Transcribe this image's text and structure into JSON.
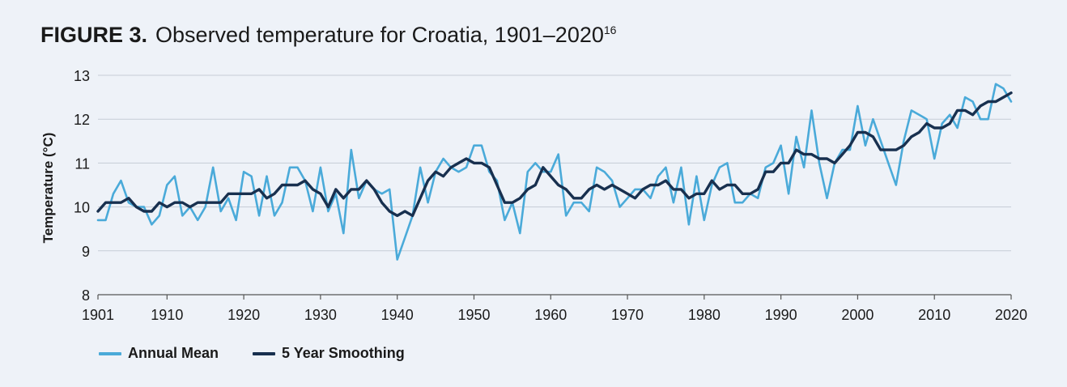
{
  "figure": {
    "label": "FIGURE 3.",
    "title": "Observed temperature for Croatia, 1901–2020",
    "footnote": "16"
  },
  "chart_data": {
    "type": "line",
    "xlabel": "",
    "ylabel": "Temperature (°C)",
    "xlim": [
      1901,
      2020
    ],
    "ylim": [
      8,
      13
    ],
    "xticks": [
      1901,
      1910,
      1920,
      1930,
      1940,
      1950,
      1960,
      1970,
      1980,
      1990,
      2000,
      2010,
      2020
    ],
    "yticks": [
      8,
      9,
      10,
      11,
      12,
      13
    ],
    "grid": "horizontal",
    "legend_position": "bottom-left",
    "series": [
      {
        "name": "Annual Mean",
        "color": "#4aaad9",
        "x_start": 1901,
        "values": [
          9.7,
          9.7,
          10.3,
          10.6,
          10.1,
          10.0,
          10.0,
          9.6,
          9.8,
          10.5,
          10.7,
          9.8,
          10.0,
          9.7,
          10.0,
          10.9,
          9.9,
          10.2,
          9.7,
          10.8,
          10.7,
          9.8,
          10.7,
          9.8,
          10.1,
          10.9,
          10.9,
          10.6,
          9.9,
          10.9,
          9.9,
          10.3,
          9.4,
          11.3,
          10.2,
          10.6,
          10.4,
          10.3,
          10.4,
          8.8,
          9.3,
          9.8,
          10.9,
          10.1,
          10.8,
          11.1,
          10.9,
          10.8,
          10.9,
          11.4,
          11.4,
          10.8,
          10.6,
          9.7,
          10.1,
          9.4,
          10.8,
          11.0,
          10.8,
          10.8,
          11.2,
          9.8,
          10.1,
          10.1,
          9.9,
          10.9,
          10.8,
          10.6,
          10.0,
          10.2,
          10.4,
          10.4,
          10.2,
          10.7,
          10.9,
          10.1,
          10.9,
          9.6,
          10.7,
          9.7,
          10.5,
          10.9,
          11.0,
          10.1,
          10.1,
          10.3,
          10.2,
          10.9,
          11.0,
          11.4,
          10.3,
          11.6,
          10.9,
          12.2,
          11.0,
          10.2,
          11.0,
          11.3,
          11.3,
          12.3,
          11.4,
          12.0,
          11.5,
          11.0,
          10.5,
          11.5,
          12.2,
          12.1,
          12.0,
          11.1,
          11.9,
          12.1,
          11.8,
          12.5,
          12.4,
          12.0,
          12.0,
          12.8,
          12.7,
          12.4
        ]
      },
      {
        "name": "5 Year Smoothing",
        "color": "#18304f",
        "x_start": 1901,
        "values": [
          9.9,
          10.1,
          10.1,
          10.1,
          10.2,
          10.0,
          9.9,
          9.9,
          10.1,
          10.0,
          10.1,
          10.1,
          10.0,
          10.1,
          10.1,
          10.1,
          10.1,
          10.3,
          10.3,
          10.3,
          10.3,
          10.4,
          10.2,
          10.3,
          10.5,
          10.5,
          10.5,
          10.6,
          10.4,
          10.3,
          10.0,
          10.4,
          10.2,
          10.4,
          10.4,
          10.6,
          10.4,
          10.1,
          9.9,
          9.8,
          9.9,
          9.8,
          10.2,
          10.6,
          10.8,
          10.7,
          10.9,
          11.0,
          11.1,
          11.0,
          11.0,
          10.9,
          10.5,
          10.1,
          10.1,
          10.2,
          10.4,
          10.5,
          10.9,
          10.7,
          10.5,
          10.4,
          10.2,
          10.2,
          10.4,
          10.5,
          10.4,
          10.5,
          10.4,
          10.3,
          10.2,
          10.4,
          10.5,
          10.5,
          10.6,
          10.4,
          10.4,
          10.2,
          10.3,
          10.3,
          10.6,
          10.4,
          10.5,
          10.5,
          10.3,
          10.3,
          10.4,
          10.8,
          10.8,
          11.0,
          11.0,
          11.3,
          11.2,
          11.2,
          11.1,
          11.1,
          11.0,
          11.2,
          11.4,
          11.7,
          11.7,
          11.6,
          11.3,
          11.3,
          11.3,
          11.4,
          11.6,
          11.7,
          11.9,
          11.8,
          11.8,
          11.9,
          12.2,
          12.2,
          12.1,
          12.3,
          12.4,
          12.4,
          12.5,
          12.6
        ]
      }
    ]
  }
}
